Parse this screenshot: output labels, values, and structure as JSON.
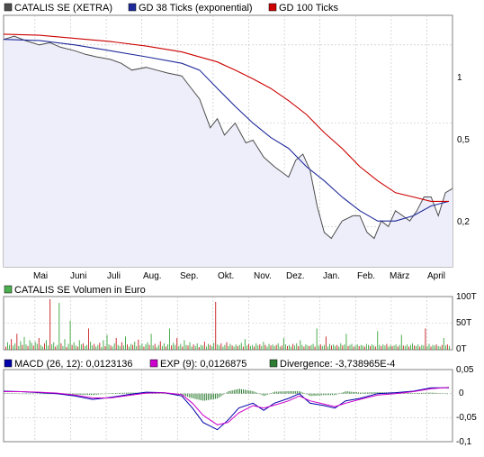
{
  "colors": {
    "price": "#4d4d4d",
    "gd38": "#1f2a9a",
    "gd100": "#cc0000",
    "volume_up": "#4caf50",
    "volume_down": "#cc3333",
    "macd": "#0000aa",
    "exp": "#cc00cc",
    "divergence": "#2e7d32",
    "panel_fill": "#efeffa",
    "grid": "#bfbfbf",
    "border": "#808080"
  },
  "price_panel": {
    "legend": [
      {
        "label": "CATALIS SE (XETRA)",
        "color": "#4d4d4d"
      },
      {
        "label": "GD 38 Ticks (exponential)",
        "color": "#1f2a9a"
      },
      {
        "label": "GD 100 Ticks",
        "color": "#cc0000"
      }
    ],
    "month_labels": [
      "Mai",
      "Juni",
      "Juli",
      "Aug.",
      "Sep.",
      "Okt.",
      "Nov.",
      "Dez.",
      "Jan.",
      "Feb.",
      "März",
      "April"
    ],
    "y_labels": [
      "1",
      "0,5",
      "0,2"
    ]
  },
  "volume_panel": {
    "legend": [
      {
        "label": "CATALIS SE Volumen in Euro",
        "color": "#4caf50"
      }
    ],
    "y_labels": [
      "100T",
      "50T",
      "0T"
    ]
  },
  "macd_panel": {
    "legend": [
      {
        "label": "MACD (26, 12): 0,0123136",
        "color": "#0000aa"
      },
      {
        "label": "EXP (9): 0,0126875",
        "color": "#cc00cc"
      },
      {
        "label": "Divergence: -3,738965E-4",
        "color": "#2e7d32"
      }
    ],
    "y_labels": [
      "0,05",
      "0",
      "-0,05",
      "-0,1"
    ]
  },
  "chart_data": [
    {
      "type": "line",
      "yscale": "log",
      "ylim": [
        0.14,
        1.3
      ],
      "yticks": [
        1,
        0.5,
        0.2
      ],
      "x_months": [
        "Apr",
        "Mai",
        "Juni",
        "Juli",
        "Aug.",
        "Sep.",
        "Okt.",
        "Nov.",
        "Dez.",
        "Jan.",
        "Feb.",
        "März",
        "April"
      ],
      "series": [
        {
          "name": "CATALIS SE (XETRA)",
          "x": [
            0,
            0.3,
            0.6,
            1.0,
            1.3,
            1.6,
            2.0,
            2.3,
            2.6,
            3.0,
            3.3,
            3.6,
            4.0,
            4.3,
            4.6,
            5.0,
            5.2,
            5.5,
            5.8,
            6.0,
            6.2,
            6.5,
            6.8,
            7.0,
            7.3,
            7.6,
            8.0,
            8.2,
            8.4,
            8.6,
            8.8,
            9.0,
            9.2,
            9.5,
            9.8,
            10.0,
            10.2,
            10.4,
            10.6,
            10.8,
            11.0,
            11.2,
            11.4,
            11.6,
            11.8,
            12.0,
            12.2,
            12.4,
            12.6
          ],
          "values": [
            1.05,
            1.08,
            1.04,
            1.0,
            1.02,
            0.98,
            0.95,
            0.92,
            0.9,
            0.88,
            0.85,
            0.8,
            0.82,
            0.8,
            0.78,
            0.76,
            0.7,
            0.62,
            0.48,
            0.52,
            0.45,
            0.5,
            0.42,
            0.43,
            0.37,
            0.34,
            0.31,
            0.36,
            0.38,
            0.33,
            0.24,
            0.19,
            0.18,
            0.21,
            0.22,
            0.22,
            0.19,
            0.18,
            0.21,
            0.2,
            0.23,
            0.22,
            0.21,
            0.23,
            0.26,
            0.26,
            0.22,
            0.27,
            0.28
          ]
        },
        {
          "name": "GD 38 Ticks (exponential)",
          "x": [
            0,
            1,
            2,
            3,
            4,
            5,
            5.5,
            6,
            6.5,
            7,
            7.5,
            8,
            8.5,
            9,
            9.5,
            10,
            10.5,
            11,
            11.5,
            12,
            12.5
          ],
          "values": [
            1.05,
            1.04,
            1.0,
            0.95,
            0.9,
            0.85,
            0.8,
            0.68,
            0.58,
            0.5,
            0.44,
            0.4,
            0.34,
            0.3,
            0.26,
            0.23,
            0.21,
            0.21,
            0.22,
            0.24,
            0.25
          ]
        },
        {
          "name": "GD 100 Ticks",
          "x": [
            0,
            1,
            2,
            3,
            4,
            5,
            6,
            6.5,
            7,
            7.5,
            8,
            8.5,
            9,
            9.5,
            10,
            10.5,
            11,
            11.5,
            12,
            12.5
          ],
          "values": [
            1.1,
            1.09,
            1.06,
            1.03,
            0.99,
            0.94,
            0.86,
            0.8,
            0.74,
            0.68,
            0.61,
            0.54,
            0.46,
            0.4,
            0.34,
            0.3,
            0.27,
            0.26,
            0.25,
            0.25
          ]
        }
      ]
    },
    {
      "type": "bar",
      "name": "CATALIS SE Volumen in Euro",
      "ylim": [
        0,
        100000
      ],
      "yticks": [
        100000,
        50000,
        0
      ],
      "values": [
        6,
        14,
        9,
        20,
        8,
        12,
        30,
        7,
        16,
        9,
        24,
        10,
        7,
        18,
        13,
        8,
        15,
        11,
        22,
        9,
        6,
        12,
        18,
        8,
        95,
        10,
        14,
        6,
        9,
        88,
        12,
        7,
        20,
        5,
        11,
        55,
        9,
        14,
        8,
        6,
        18,
        10,
        12,
        7,
        9,
        40,
        15,
        8,
        11,
        6,
        9,
        13,
        5,
        18,
        7,
        28,
        10,
        8,
        6,
        12,
        22,
        9,
        7,
        14,
        8,
        25,
        10,
        6,
        11,
        9,
        15,
        7,
        19,
        8,
        12,
        6,
        10,
        14,
        9,
        30,
        8,
        11,
        5,
        9,
        16,
        7,
        12,
        6,
        10,
        40,
        8,
        13,
        9,
        22,
        7,
        11,
        6,
        18,
        9,
        8,
        14,
        6,
        10,
        7,
        12,
        5,
        9,
        8,
        15,
        6,
        11,
        9,
        7,
        13,
        90,
        10,
        8,
        12,
        6,
        9,
        14,
        7,
        11,
        8,
        6,
        10,
        7,
        9,
        13,
        6,
        20,
        8,
        11,
        7,
        9,
        6,
        12,
        8,
        10,
        7,
        15,
        9,
        6,
        11,
        8,
        10,
        7,
        9,
        12,
        6,
        8,
        22,
        10,
        7,
        9,
        6,
        11,
        8,
        12,
        7,
        18,
        9,
        6,
        10,
        8,
        7,
        9,
        11,
        6,
        40,
        8,
        10,
        7,
        9,
        25,
        6,
        11,
        8,
        10,
        7,
        9,
        6,
        12,
        8,
        10,
        30,
        7,
        9,
        11,
        6,
        8,
        10,
        7,
        9,
        8,
        6,
        11,
        9,
        7,
        10,
        8,
        6,
        35,
        9,
        7,
        10,
        8,
        11,
        6,
        9,
        7,
        8,
        10,
        6,
        9,
        28,
        8,
        7,
        10,
        6,
        9,
        12,
        8,
        7,
        10,
        6,
        9,
        8,
        40,
        7,
        11,
        6,
        9,
        8,
        10,
        7,
        6,
        9,
        22,
        8,
        10,
        7
      ]
    },
    {
      "type": "line",
      "ylim": [
        -0.1,
        0.05
      ],
      "yticks": [
        0.05,
        0,
        -0.05,
        -0.1
      ],
      "series": [
        {
          "name": "MACD (26, 12): 0,0123136",
          "x": [
            0,
            0.5,
            1,
            1.5,
            2,
            2.5,
            3,
            3.5,
            4,
            4.5,
            5,
            5.3,
            5.6,
            6,
            6.3,
            6.6,
            7,
            7.3,
            7.6,
            8,
            8.3,
            8.6,
            9,
            9.3,
            9.6,
            10,
            10.5,
            11,
            11.5,
            12,
            12.5
          ],
          "values": [
            0.005,
            0.004,
            0.002,
            0.0,
            -0.005,
            -0.012,
            -0.008,
            -0.002,
            0.003,
            0.002,
            -0.005,
            -0.03,
            -0.06,
            -0.075,
            -0.055,
            -0.03,
            -0.02,
            -0.035,
            -0.02,
            -0.01,
            0.0,
            -0.02,
            -0.025,
            -0.03,
            -0.015,
            -0.01,
            0.0,
            0.002,
            0.005,
            0.012,
            0.012
          ]
        },
        {
          "name": "EXP (9): 0,0126875",
          "x": [
            0,
            0.5,
            1,
            1.5,
            2,
            2.5,
            3,
            3.5,
            4,
            4.5,
            5,
            5.3,
            5.6,
            6,
            6.3,
            6.6,
            7,
            7.3,
            7.6,
            8,
            8.3,
            8.6,
            9,
            9.3,
            9.6,
            10,
            10.5,
            11,
            11.5,
            12,
            12.5
          ],
          "values": [
            0.004,
            0.004,
            0.003,
            0.001,
            -0.003,
            -0.009,
            -0.009,
            -0.004,
            0.001,
            0.002,
            -0.002,
            -0.02,
            -0.045,
            -0.065,
            -0.06,
            -0.04,
            -0.025,
            -0.03,
            -0.024,
            -0.015,
            -0.005,
            -0.015,
            -0.022,
            -0.027,
            -0.02,
            -0.012,
            -0.003,
            0.0,
            0.004,
            0.01,
            0.013
          ]
        },
        {
          "name": "Divergence: -3,738965E-4",
          "type": "bar",
          "x": [
            0,
            0.5,
            1,
            1.5,
            2,
            2.5,
            3,
            3.5,
            4,
            4.5,
            5,
            5.3,
            5.6,
            6,
            6.3,
            6.6,
            7,
            7.3,
            7.6,
            8,
            8.3,
            8.6,
            9,
            9.3,
            9.6,
            10,
            10.5,
            11,
            11.5,
            12,
            12.5
          ],
          "values": [
            0.001,
            0.0,
            -0.001,
            -0.001,
            -0.002,
            -0.003,
            0.001,
            0.002,
            0.002,
            0.0,
            -0.003,
            -0.01,
            -0.015,
            -0.01,
            0.005,
            0.01,
            0.005,
            -0.005,
            0.004,
            0.005,
            0.005,
            -0.005,
            -0.003,
            -0.003,
            0.005,
            0.002,
            0.003,
            0.002,
            0.001,
            0.002,
            -0.0004
          ]
        }
      ]
    }
  ]
}
